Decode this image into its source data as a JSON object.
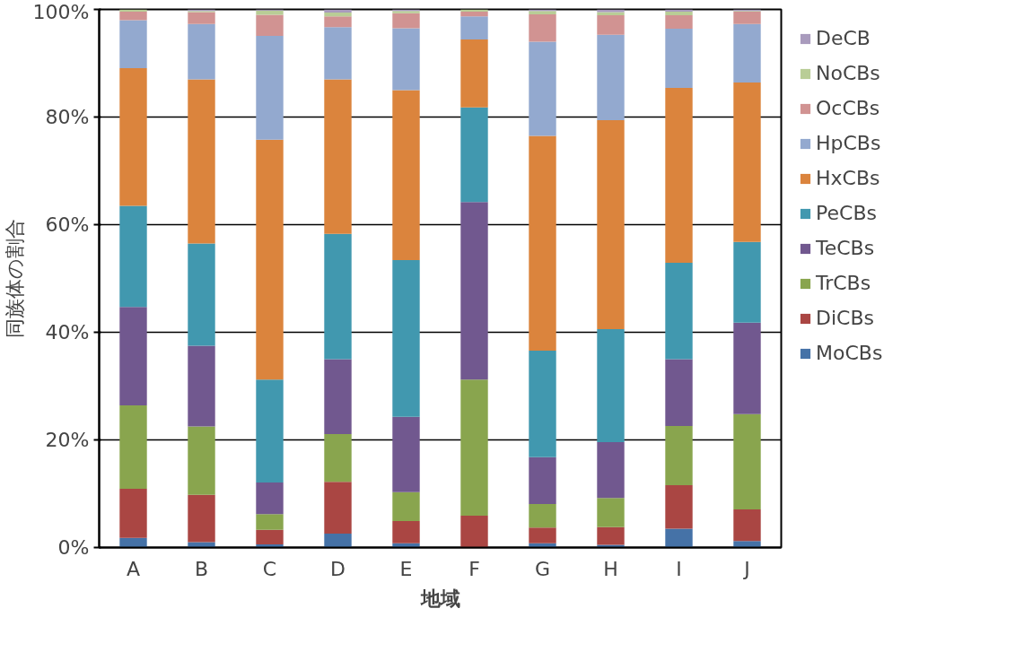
{
  "chart_data": {
    "type": "bar",
    "stacked": true,
    "xlabel": "地域",
    "ylabel": "同族体の割合",
    "categories": [
      "A",
      "B",
      "C",
      "D",
      "E",
      "F",
      "G",
      "H",
      "I",
      "J"
    ],
    "series": [
      {
        "name": "MoCBs",
        "color": "#4572a7",
        "values": [
          1.8,
          1.0,
          0.6,
          2.6,
          0.8,
          0,
          0.8,
          0.5,
          3.5,
          1.2
        ]
      },
      {
        "name": "DiCBs",
        "color": "#aa4643",
        "values": [
          9.1,
          8.8,
          2.7,
          9.6,
          4.1,
          5.9,
          2.9,
          3.3,
          8.1,
          5.9
        ]
      },
      {
        "name": "TrCBs",
        "color": "#89a54e",
        "values": [
          15.5,
          12.7,
          2.9,
          8.9,
          5.4,
          25.3,
          4.4,
          5.4,
          11.0,
          17.7
        ]
      },
      {
        "name": "TeCBs",
        "color": "#71588f",
        "values": [
          18.3,
          15.0,
          5.9,
          13.9,
          14.0,
          33.0,
          8.7,
          10.4,
          12.4,
          17.0
        ]
      },
      {
        "name": "PeCBs",
        "color": "#4198af",
        "values": [
          18.8,
          19.0,
          19.1,
          23.3,
          29.1,
          17.6,
          19.8,
          21.0,
          17.9,
          15.0
        ]
      },
      {
        "name": "HxCBs",
        "color": "#db843d",
        "values": [
          25.6,
          30.5,
          44.6,
          28.7,
          31.6,
          12.6,
          39.9,
          38.8,
          32.5,
          29.6
        ]
      },
      {
        "name": "HpCBs",
        "color": "#93a9cf",
        "values": [
          8.9,
          10.3,
          19.3,
          9.7,
          11.5,
          4.3,
          17.5,
          15.9,
          11.0,
          10.9
        ]
      },
      {
        "name": "OcCBs",
        "color": "#d19392",
        "values": [
          1.6,
          2.2,
          3.9,
          2.0,
          2.8,
          0.9,
          5.1,
          3.6,
          2.5,
          2.3
        ]
      },
      {
        "name": "NoCBs",
        "color": "#b9cd96",
        "values": [
          0.4,
          0.2,
          0.8,
          0.7,
          0.4,
          0.4,
          0.6,
          0.6,
          0.7,
          0.1
        ]
      },
      {
        "name": "DeCB",
        "color": "#a99bbd",
        "values": [
          0,
          0.3,
          0.2,
          0.6,
          0.3,
          0,
          0.3,
          0.5,
          0.4,
          0.3
        ]
      }
    ],
    "ylim": [
      0,
      100
    ],
    "yticks": [
      {
        "value": 0,
        "label": "0%"
      },
      {
        "value": 20,
        "label": "20%"
      },
      {
        "value": 40,
        "label": "40%"
      },
      {
        "value": 60,
        "label": "60%"
      },
      {
        "value": 80,
        "label": "80%"
      },
      {
        "value": 100,
        "label": "100%"
      }
    ],
    "grid": "y",
    "legend": "right"
  }
}
